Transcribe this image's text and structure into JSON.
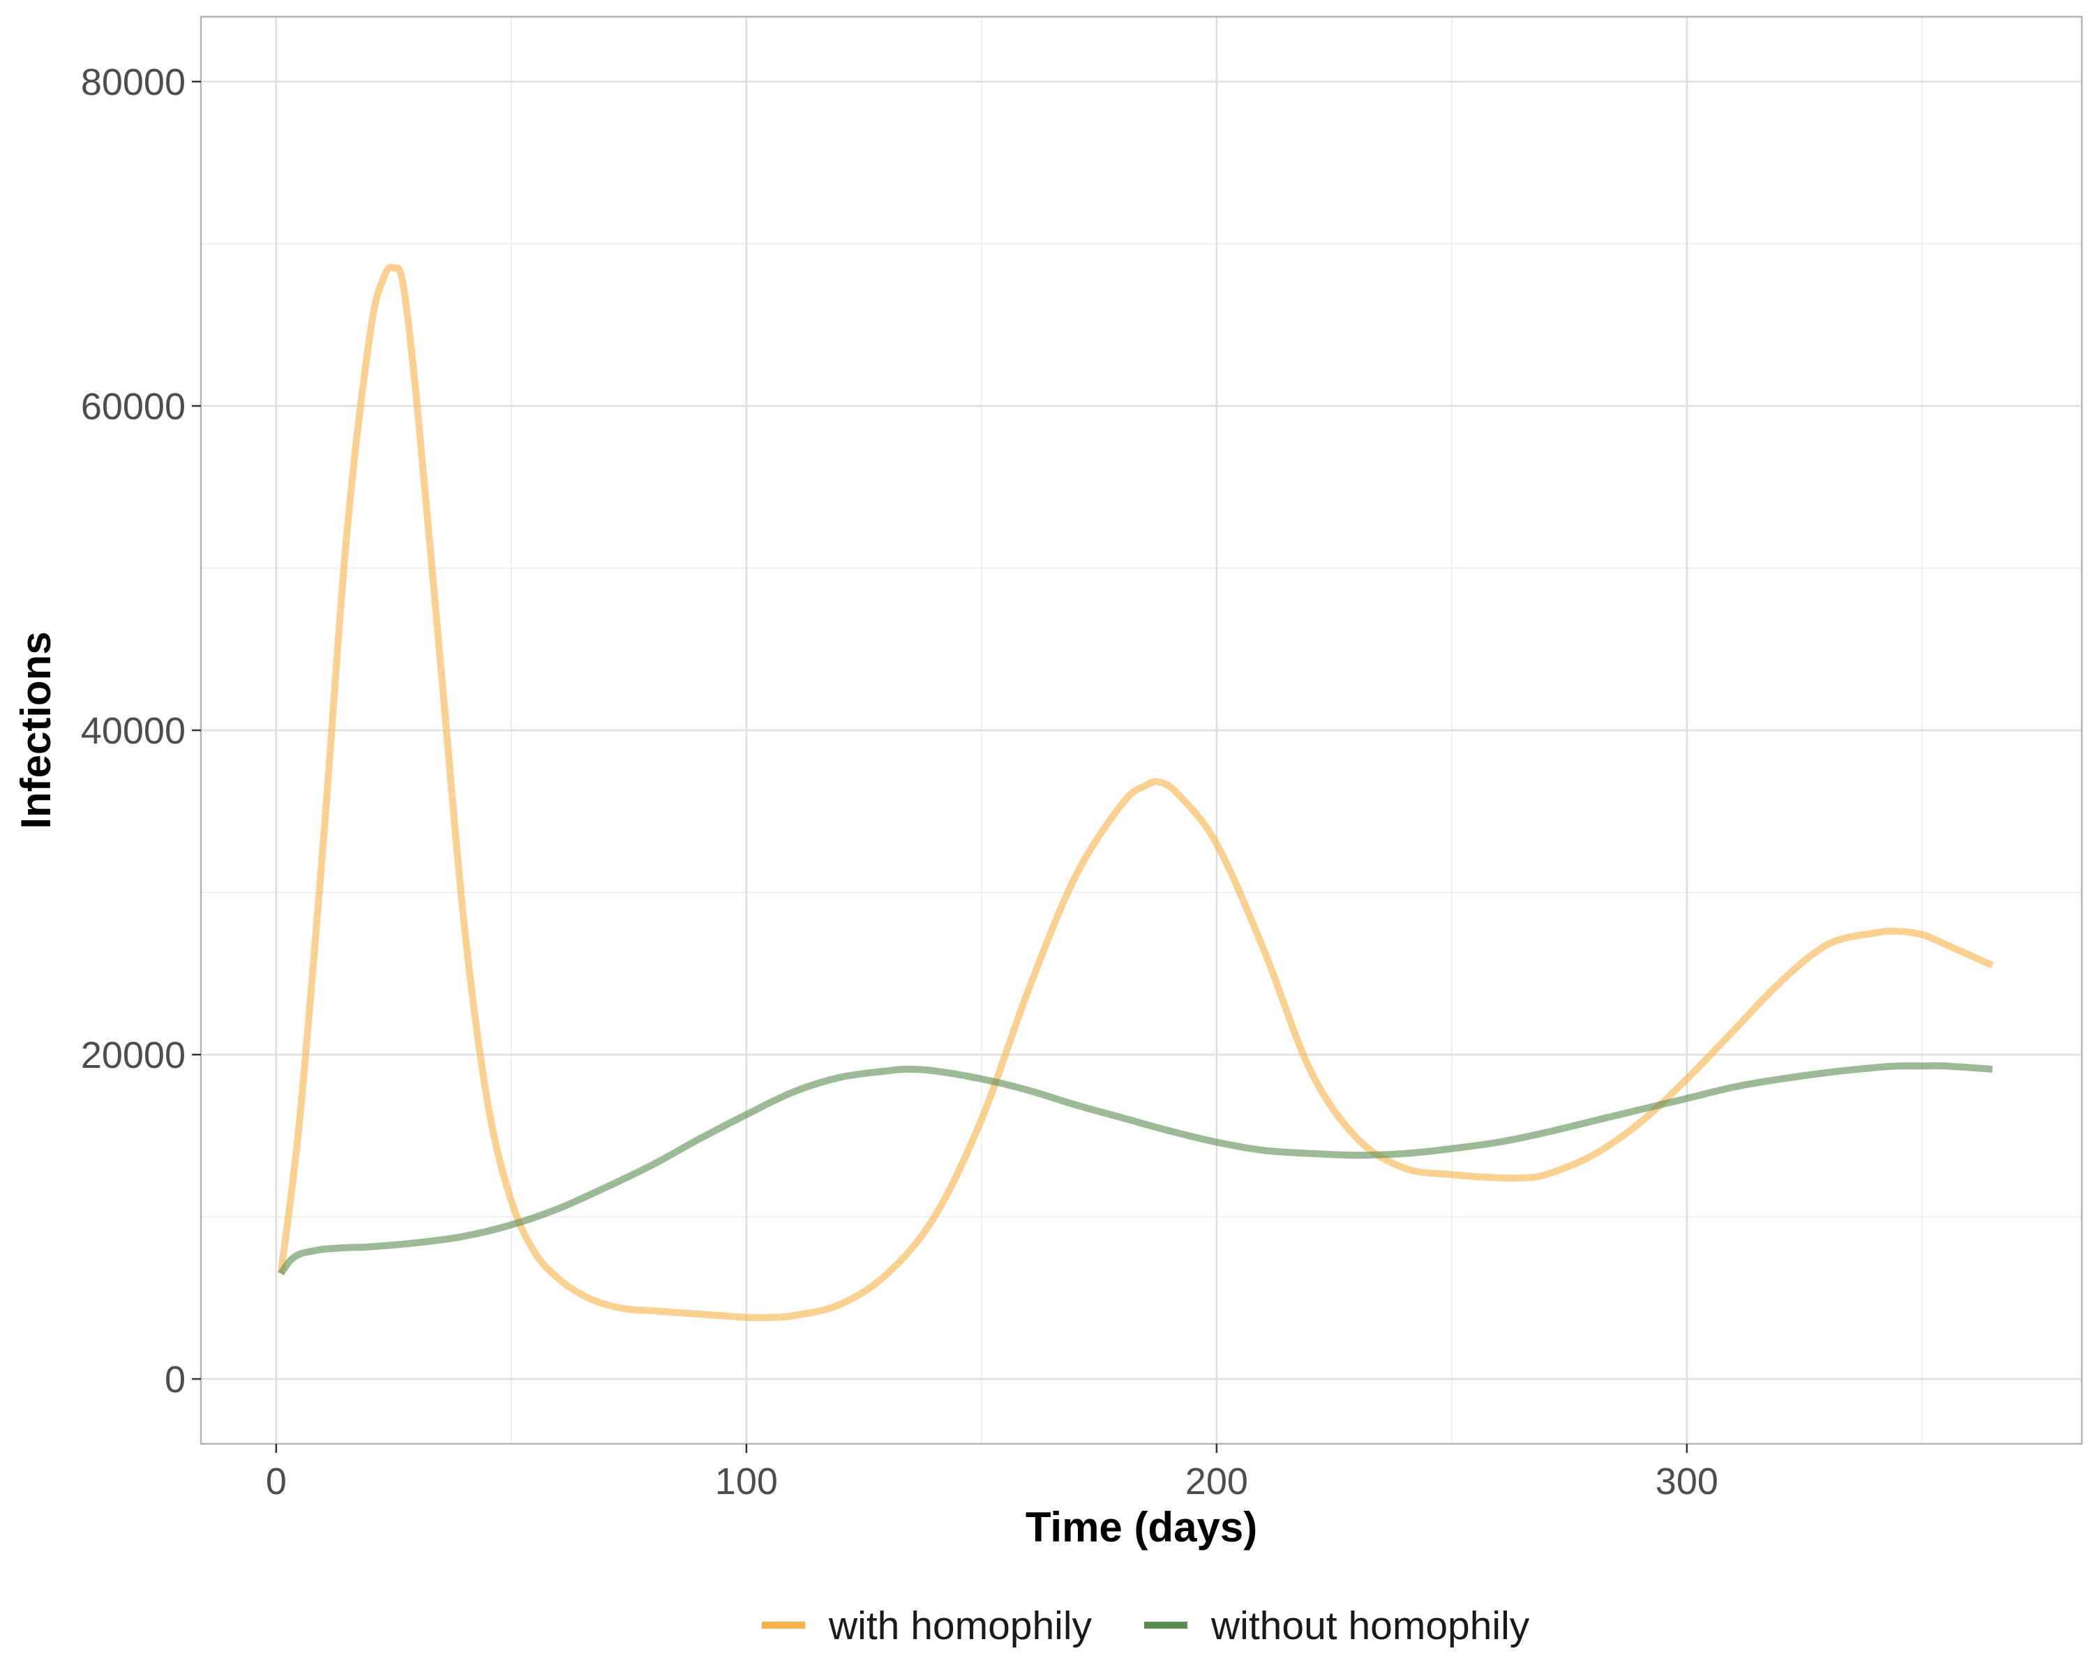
{
  "chart_data": {
    "type": "line",
    "xlabel": "Time (days)",
    "ylabel": "Infections",
    "xlim": [
      -16,
      384
    ],
    "ylim": [
      -4000,
      84000
    ],
    "x_ticks": [
      0,
      100,
      200,
      300
    ],
    "x_tick_labels": [
      "0",
      "100",
      "200",
      "300"
    ],
    "x_minor_ticks": [
      50,
      150,
      250,
      350
    ],
    "y_ticks": [
      0,
      20000,
      40000,
      60000,
      80000
    ],
    "y_tick_labels": [
      "0",
      "20000",
      "40000",
      "60000",
      "80000"
    ],
    "y_minor_ticks": [
      10000,
      30000,
      50000,
      70000
    ],
    "grid": true,
    "legend_position": "bottom",
    "series": [
      {
        "name": "with homophily",
        "color": "#f9b24a",
        "x": [
          1,
          5,
          10,
          15,
          20,
          23,
          25,
          27,
          30,
          35,
          40,
          45,
          50,
          55,
          60,
          65,
          70,
          75,
          80,
          90,
          100,
          105,
          110,
          120,
          130,
          140,
          150,
          160,
          170,
          180,
          185,
          188,
          192,
          200,
          210,
          220,
          230,
          240,
          250,
          260,
          265,
          270,
          280,
          290,
          300,
          310,
          320,
          330,
          340,
          345,
          350,
          355,
          365
        ],
        "values": [
          6500,
          16000,
          33000,
          52000,
          64500,
          68000,
          68500,
          67500,
          60000,
          44000,
          28000,
          17000,
          11000,
          7800,
          6200,
          5200,
          4600,
          4300,
          4200,
          4000,
          3800,
          3800,
          3900,
          4600,
          6500,
          10000,
          16000,
          24000,
          31000,
          35500,
          36600,
          36800,
          36000,
          33000,
          26500,
          19000,
          14800,
          13000,
          12600,
          12400,
          12400,
          12600,
          13800,
          15800,
          18500,
          21500,
          24500,
          26800,
          27500,
          27600,
          27400,
          26800,
          25500
        ]
      },
      {
        "name": "without homophily",
        "color": "#5b8c51",
        "x": [
          1,
          3,
          5,
          8,
          10,
          15,
          20,
          30,
          40,
          50,
          60,
          70,
          80,
          90,
          100,
          110,
          120,
          130,
          134,
          140,
          150,
          160,
          170,
          180,
          190,
          200,
          210,
          220,
          230,
          240,
          250,
          260,
          270,
          280,
          290,
          300,
          310,
          320,
          330,
          340,
          345,
          350,
          355,
          365
        ],
        "values": [
          6500,
          7300,
          7700,
          7900,
          8000,
          8100,
          8150,
          8400,
          8800,
          9500,
          10500,
          11800,
          13200,
          14800,
          16300,
          17700,
          18600,
          19000,
          19100,
          19000,
          18500,
          17800,
          16900,
          16100,
          15300,
          14600,
          14100,
          13900,
          13800,
          13900,
          14200,
          14600,
          15200,
          15900,
          16600,
          17300,
          18000,
          18500,
          18900,
          19200,
          19300,
          19300,
          19300,
          19100
        ]
      }
    ]
  }
}
